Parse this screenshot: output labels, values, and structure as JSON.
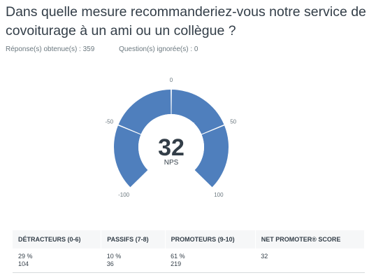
{
  "question": "Dans quelle mesure recommanderiez-vous notre service de covoiturage à un ami ou un collègue ?",
  "responses_label": "Réponse(s) obtenue(s) : 359",
  "skipped_label": "Question(s) ignorée(s) : 0",
  "colors": {
    "arc": "#4f7fbd",
    "background": "#ffffff",
    "text": "#333e48"
  },
  "chart_data": {
    "type": "gauge",
    "scale_min": -100,
    "scale_max": 100,
    "value": 32,
    "value_caption": "NPS",
    "ticks": [
      {
        "value": -100,
        "label": "-100"
      },
      {
        "value": -50,
        "label": "-50"
      },
      {
        "value": 0,
        "label": "0"
      },
      {
        "value": 50,
        "label": "50"
      },
      {
        "value": 100,
        "label": "100"
      }
    ]
  },
  "table": {
    "headers": [
      "DÉTRACTEURS (0-6)",
      "PASSIFS (7-8)",
      "PROMOTEURS (9-10)",
      "NET PROMOTER® SCORE"
    ],
    "rows": [
      {
        "percent": "29 %",
        "count": "104"
      },
      {
        "percent": "10 %",
        "count": "36"
      },
      {
        "percent": "61 %",
        "count": "219"
      },
      {
        "percent": "32",
        "count": ""
      }
    ]
  }
}
